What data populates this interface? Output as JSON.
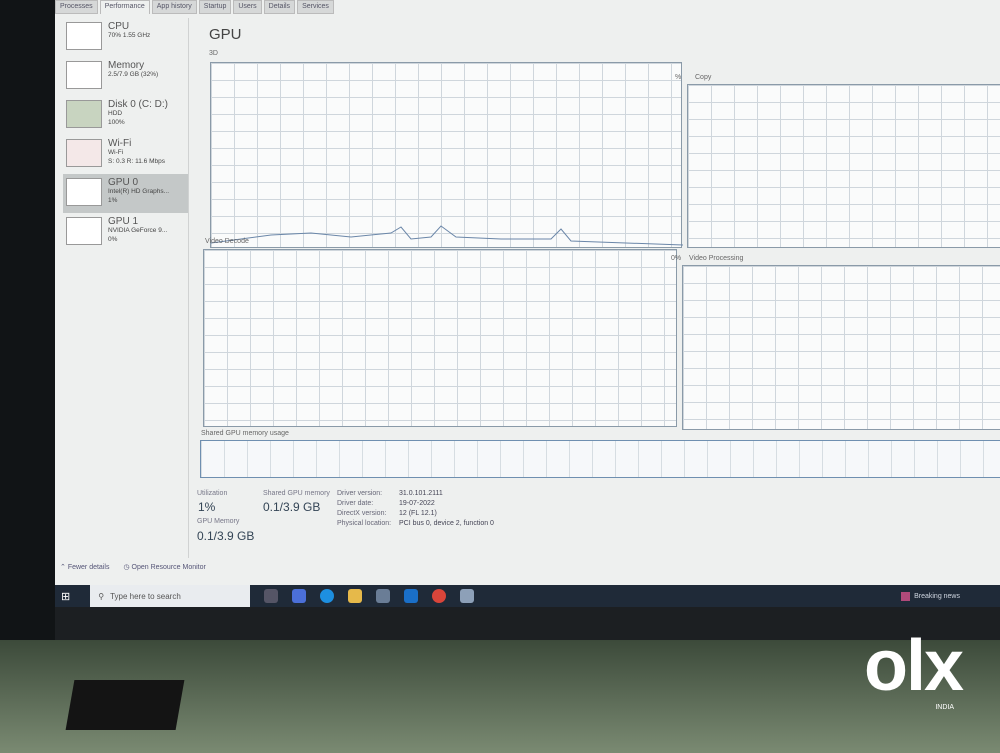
{
  "tabs": [
    "Processes",
    "Performance",
    "App history",
    "Startup",
    "Users",
    "Details",
    "Services"
  ],
  "sidebar": [
    {
      "name": "CPU",
      "sub1": "70% 1.55 GHz",
      "sub2": ""
    },
    {
      "name": "Memory",
      "sub1": "2.5/7.9 GB (32%)",
      "sub2": ""
    },
    {
      "name": "Disk 0 (C: D:)",
      "sub1": "HDD",
      "sub2": "100%"
    },
    {
      "name": "Wi-Fi",
      "sub1": "Wi-Fi",
      "sub2": "S: 0.3 R: 11.6 Mbps"
    },
    {
      "name": "GPU 0",
      "sub1": "Intel(R) HD Graphs...",
      "sub2": "1%"
    },
    {
      "name": "GPU 1",
      "sub1": "NVIDIA GeForce 9...",
      "sub2": "0%"
    }
  ],
  "title": "GPU",
  "graphs": {
    "g3d": "3D",
    "copy": "Copy",
    "copy_pct": "%",
    "video_decode": "Video Decode",
    "video_processing": "Video Processing",
    "vp_pct": "0%",
    "shared": "Shared GPU memory usage"
  },
  "stats": {
    "util_label": "Utilization",
    "util": "1%",
    "shared_label": "Shared GPU memory",
    "shared": "0.1/3.9 GB",
    "gpumem_label": "GPU Memory",
    "gpumem": "0.1/3.9 GB"
  },
  "details": [
    {
      "k": "Driver version:",
      "v": "31.0.101.2111"
    },
    {
      "k": "Driver date:",
      "v": "19-07-2022"
    },
    {
      "k": "DirectX version:",
      "v": "12 (FL 12.1)"
    },
    {
      "k": "Physical location:",
      "v": "PCI bus 0, device 2, function 0"
    }
  ],
  "footer": {
    "fewer": "Fewer details",
    "monitor": "Open Resource Monitor"
  },
  "taskbar": {
    "search_placeholder": "Type here to search",
    "news": "Breaking news"
  },
  "watermark": "OLX",
  "watermark_sub": "INDIA"
}
